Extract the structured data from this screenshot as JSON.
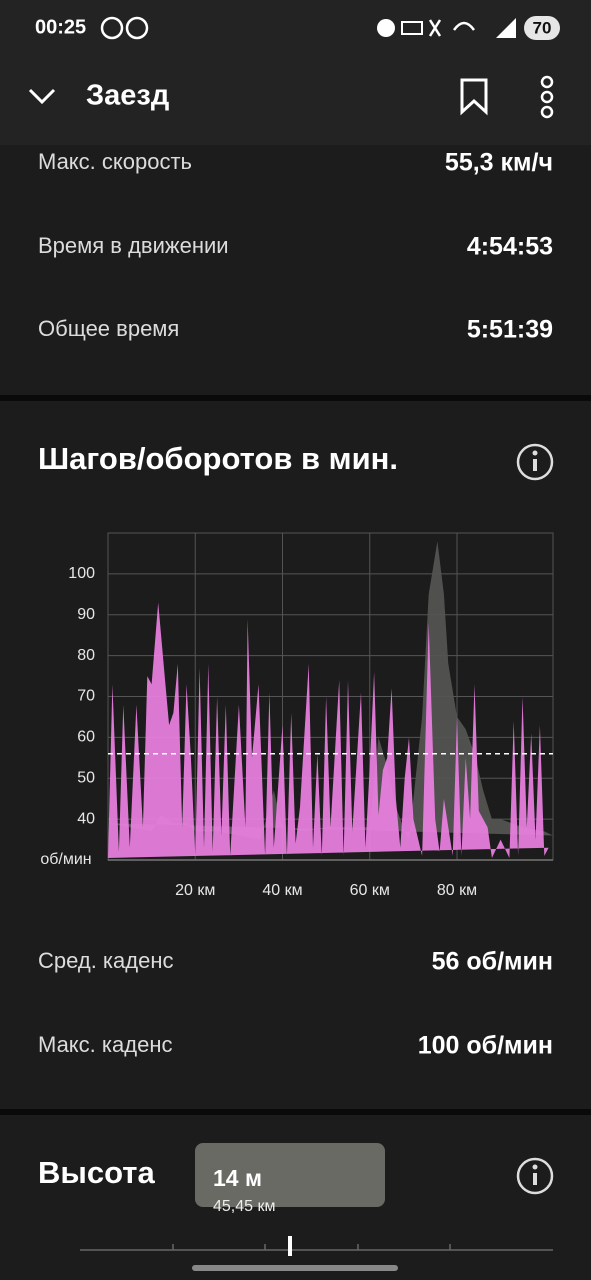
{
  "status_bar": {
    "time": "00:25",
    "battery": "70"
  },
  "header": {
    "title": "Заезд"
  },
  "stats": [
    {
      "label": "Макс. скорость",
      "value": "55,3 км/ч"
    },
    {
      "label": "Время в движении",
      "value": "4:54:53"
    },
    {
      "label": "Общее время",
      "value": "5:51:39"
    }
  ],
  "chart_data": {
    "type": "area",
    "title": "Шагов/оборотов в мин.",
    "y_label": "об/мин",
    "xlim": [
      0,
      102
    ],
    "ylim": [
      30,
      110
    ],
    "xticks": [
      {
        "value": 20,
        "label": "20 км"
      },
      {
        "value": 40,
        "label": "40 км"
      },
      {
        "value": 60,
        "label": "60 км"
      },
      {
        "value": 80,
        "label": "80 км"
      }
    ],
    "yticks": [
      40,
      50,
      60,
      70,
      80,
      90,
      100
    ],
    "grid": true,
    "average_line": 56,
    "series": [
      {
        "color": "#555553",
        "x": [
          0,
          5,
          10,
          12,
          15,
          18,
          20,
          25,
          30,
          35,
          38,
          40,
          45,
          50,
          55,
          60,
          62,
          64,
          66,
          68,
          69,
          70,
          72,
          73.5,
          75.5,
          77,
          78,
          80,
          82,
          84,
          86,
          88,
          90,
          95,
          100,
          102
        ],
        "values": [
          39,
          38,
          37,
          41,
          39,
          39,
          37,
          37,
          36,
          35,
          47,
          38,
          37,
          38,
          38,
          38,
          60,
          53,
          43,
          37,
          35,
          45,
          65,
          95,
          108,
          95,
          78,
          65,
          62,
          56,
          47,
          40,
          40,
          38,
          37,
          36
        ]
      },
      {
        "color": "#ea80e2",
        "x": [
          0,
          1,
          2.5,
          3.5,
          5,
          6.5,
          8,
          9,
          10,
          11.5,
          13,
          14,
          15,
          16,
          17,
          18,
          19,
          20,
          21,
          22,
          23,
          24,
          25,
          26,
          27,
          28,
          30,
          31.5,
          32,
          33,
          34.5,
          36,
          37,
          38,
          40,
          41,
          42,
          43,
          44,
          46,
          47,
          48,
          49,
          50,
          51,
          53,
          54,
          55,
          56,
          58,
          59,
          60,
          61,
          62,
          63,
          64,
          65,
          66,
          67,
          68,
          69,
          70,
          72,
          73.5,
          75,
          76,
          77,
          79,
          80,
          81,
          82,
          83,
          84,
          85,
          87,
          88,
          90,
          92,
          93,
          94,
          95,
          96,
          97,
          98,
          99,
          100,
          101
        ],
        "values": [
          30.5,
          73,
          32,
          68,
          33,
          68,
          38,
          75,
          73,
          93,
          75,
          63,
          66,
          78,
          38,
          73,
          55,
          31,
          77,
          33,
          78,
          32,
          70,
          36,
          68,
          31,
          68,
          38,
          89,
          55,
          73,
          31,
          71,
          33,
          63,
          31,
          66,
          34,
          43,
          78,
          33,
          56,
          31,
          70,
          38,
          74,
          31,
          74,
          37,
          71,
          33,
          53,
          76,
          41,
          52,
          55,
          72,
          45,
          33,
          50,
          60,
          40,
          31,
          88,
          40,
          32,
          45,
          31,
          65,
          31,
          55,
          40,
          73,
          42,
          38,
          30.5,
          35,
          30.5,
          64,
          31,
          70,
          38,
          61,
          35,
          63,
          31,
          33
        ]
      }
    ]
  },
  "cadence_stats": [
    {
      "label": "Сред. каденс",
      "value": "56 об/мин"
    },
    {
      "label": "Макс. каденс",
      "value": "100 об/мин"
    }
  ],
  "elevation": {
    "title": "Высота",
    "tooltip_value": "14 м",
    "tooltip_distance": "45,45 км"
  }
}
